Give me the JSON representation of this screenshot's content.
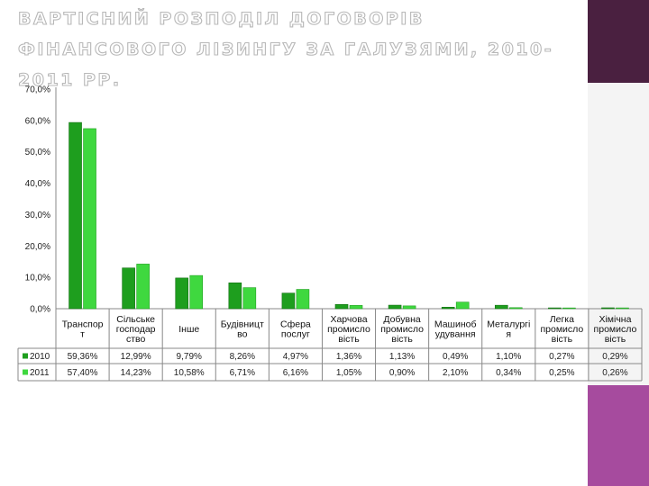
{
  "slide": {
    "title": "ВАРТІСНИЙ РОЗПОДІЛ ДОГОВОРІВ ФІНАНСОВОГО ЛІЗИНГУ ЗА ГАЛУЗЯМИ, 2010-2011 РР."
  },
  "colors": {
    "series_2010": "#1e9e1e",
    "series_2011": "#3fd83f",
    "sidebar_dark": "#4a2040",
    "sidebar_accent": "#a64b9e"
  },
  "chart_data": {
    "type": "bar",
    "title": "",
    "xlabel": "",
    "ylabel": "",
    "ylim": [
      0,
      70
    ],
    "yticks": [
      "0,0%",
      "10,0%",
      "20,0%",
      "30,0%",
      "40,0%",
      "50,0%",
      "60,0%",
      "70,0%"
    ],
    "grid": false,
    "legend": "table-left",
    "categories": [
      [
        "Транспор",
        "т"
      ],
      [
        "Сільське",
        "господар",
        "ство"
      ],
      [
        "Інше"
      ],
      [
        "Будівницт",
        "во"
      ],
      [
        "Сфера",
        "послуг"
      ],
      [
        "Харчова",
        "промисло",
        "вість"
      ],
      [
        "Добувна",
        "промисло",
        "вість"
      ],
      [
        "Машиноб",
        "удування"
      ],
      [
        "Металургі",
        "я"
      ],
      [
        "Легка",
        "промисло",
        "вість"
      ],
      [
        "Хімічна",
        "промисло",
        "вість"
      ]
    ],
    "series": [
      {
        "name": "2010",
        "values": [
          59.36,
          12.99,
          9.79,
          8.26,
          4.97,
          1.36,
          1.13,
          0.49,
          1.1,
          0.27,
          0.29
        ],
        "labels": [
          "59,36%",
          "12,99%",
          "9,79%",
          "8,26%",
          "4,97%",
          "1,36%",
          "1,13%",
          "0,49%",
          "1,10%",
          "0,27%",
          "0,29%"
        ]
      },
      {
        "name": "2011",
        "values": [
          57.4,
          14.23,
          10.58,
          6.71,
          6.16,
          1.05,
          0.9,
          2.1,
          0.34,
          0.25,
          0.26
        ],
        "labels": [
          "57,40%",
          "14,23%",
          "10,58%",
          "6,71%",
          "6,16%",
          "1,05%",
          "0,90%",
          "2,10%",
          "0,34%",
          "0,25%",
          "0,26%"
        ]
      }
    ]
  }
}
